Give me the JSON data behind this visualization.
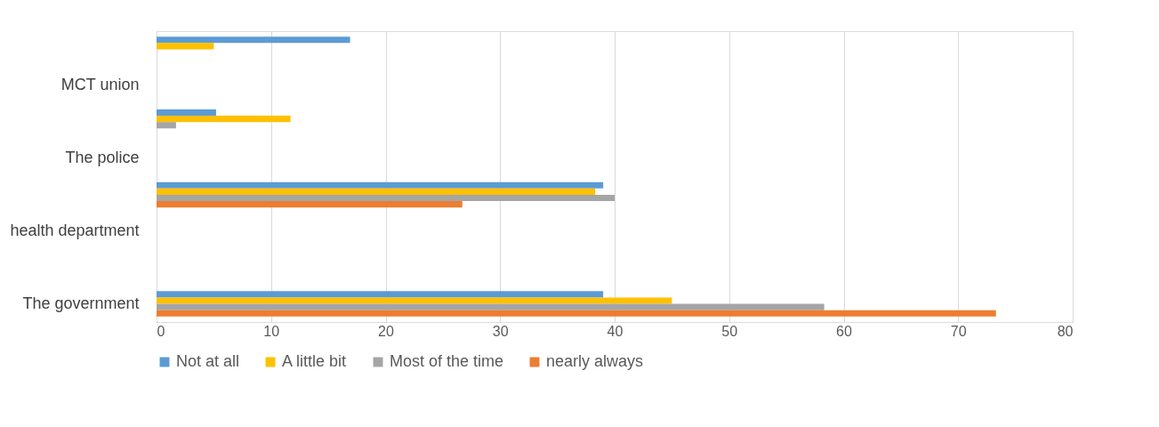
{
  "chart_data": {
    "type": "bar",
    "orientation": "horizontal",
    "categories": [
      null,
      "MCT union",
      null,
      "The police",
      null,
      "health department",
      null,
      "The government"
    ],
    "series": [
      {
        "name": "Not at all",
        "color": "#5b9bd5",
        "values": [
          16.9,
          null,
          5.2,
          null,
          39.0,
          null,
          null,
          39.0
        ]
      },
      {
        "name": "A little bit",
        "color": "#ffc000",
        "values": [
          5.0,
          null,
          11.7,
          null,
          38.3,
          null,
          null,
          45.0
        ]
      },
      {
        "name": "Most of the time",
        "color": "#a5a5a5",
        "values": [
          null,
          null,
          1.7,
          null,
          40.0,
          null,
          null,
          58.3
        ]
      },
      {
        "name": "nearly always",
        "color": "#ed7d31",
        "values": [
          null,
          null,
          null,
          null,
          26.7,
          null,
          null,
          73.3
        ]
      }
    ],
    "xlim": [
      0,
      80
    ],
    "xticks": [
      0,
      10,
      20,
      30,
      40,
      50,
      60,
      70,
      80
    ],
    "grid": "x",
    "legend": "bottom"
  }
}
